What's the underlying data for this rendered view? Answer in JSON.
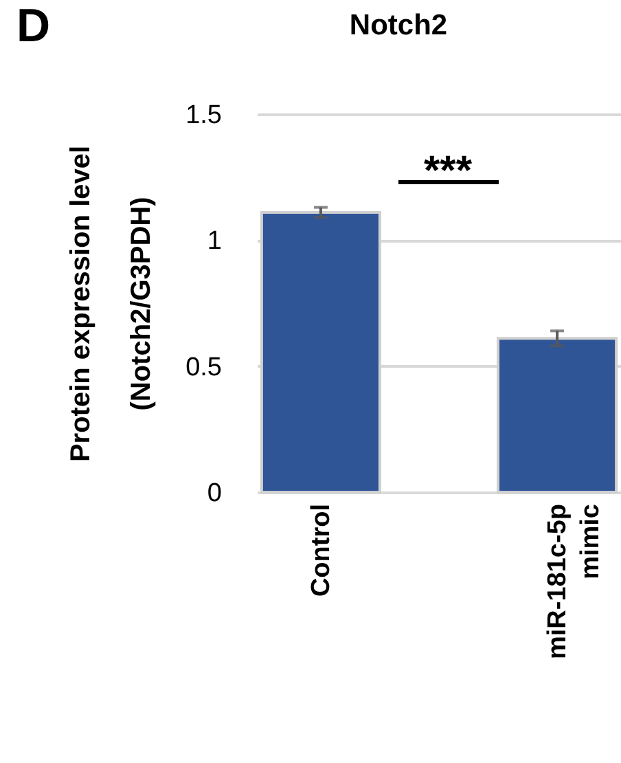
{
  "chart_data": {
    "type": "bar",
    "title": "Notch2",
    "ylabel": "Protein expression level\n(Notch2/G3PDH)",
    "categories": [
      "Control",
      "miR-181c-5p mimic"
    ],
    "values": [
      1.11,
      0.61
    ],
    "errors": [
      0.02,
      0.03
    ],
    "color": "#2f5597",
    "ylim": [
      0,
      1.5
    ],
    "yticks": [
      0,
      {
        "value": 0.5,
        "label": "0.5"
      },
      1,
      {
        "value": 1.5,
        "label": "1.5"
      }
    ],
    "grid": "y",
    "annotations": [
      "D",
      "***"
    ]
  }
}
